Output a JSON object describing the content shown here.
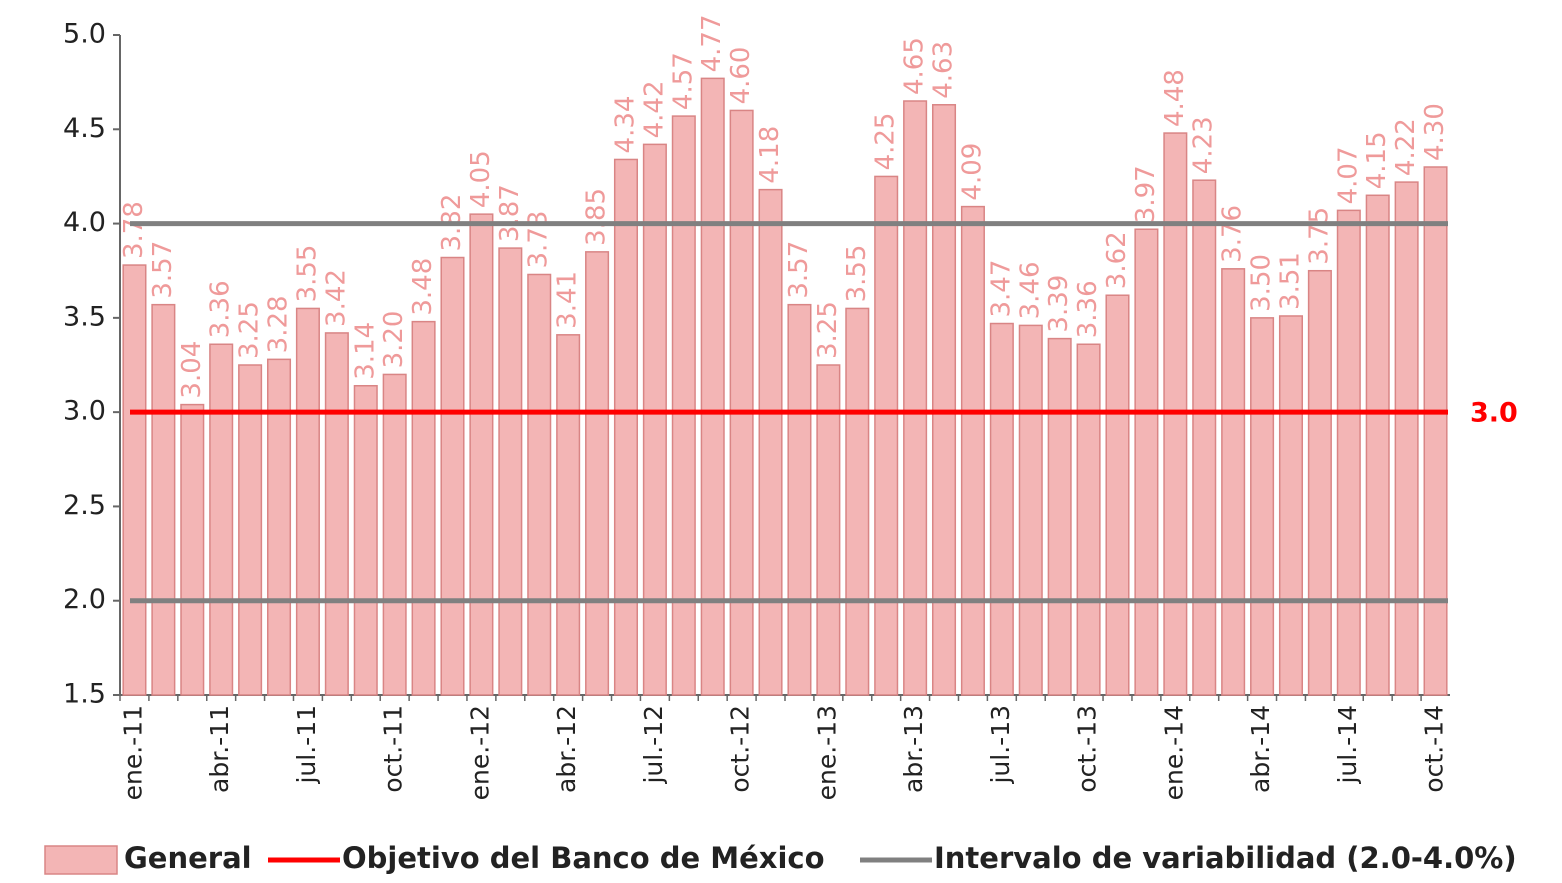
{
  "chart_data": {
    "type": "bar",
    "categories": [
      "ene.-11",
      null,
      null,
      "abr.-11",
      null,
      null,
      "jul.-11",
      null,
      null,
      "oct.-11",
      null,
      null,
      "ene.-12",
      null,
      null,
      "abr.-12",
      null,
      null,
      "jul.-12",
      null,
      null,
      "oct.-12",
      null,
      null,
      "ene.-13",
      null,
      null,
      "abr.-13",
      null,
      null,
      "jul.-13",
      null,
      null,
      "oct.-13",
      null,
      null,
      "ene.-14",
      null,
      null,
      "abr.-14",
      null,
      null,
      "jul.-14",
      null,
      null,
      "oct.-14"
    ],
    "series": [
      {
        "name": "General",
        "color": "#f3b5b5",
        "label_color": "#ef9a9a",
        "values": [
          3.78,
          3.57,
          3.04,
          3.36,
          3.25,
          3.28,
          3.55,
          3.42,
          3.14,
          3.2,
          3.48,
          3.82,
          4.05,
          3.87,
          3.73,
          3.41,
          3.85,
          4.34,
          4.42,
          4.57,
          4.77,
          4.6,
          4.18,
          3.57,
          3.25,
          3.55,
          4.25,
          4.65,
          4.63,
          4.09,
          3.47,
          3.46,
          3.39,
          3.36,
          3.62,
          3.97,
          4.48,
          4.23,
          3.76,
          3.5,
          3.51,
          3.75,
          4.07,
          4.15,
          4.22,
          4.3
        ],
        "value_labels": [
          "3.78",
          "3.57",
          "3.04",
          "3.36",
          "3.25",
          "3.28",
          "3.55",
          "3.42",
          "3.14",
          "3.20",
          "3.48",
          "3.82",
          "4.05",
          "3.87",
          "3.73",
          "3.41",
          "3.85",
          "4.34",
          "4.42",
          "4.57",
          "4.77",
          "4.60",
          "4.18",
          "3.57",
          "3.25",
          "3.55",
          "4.25",
          "4.65",
          "4.63",
          "4.09",
          "3.47",
          "3.46",
          "3.39",
          "3.36",
          "3.62",
          "3.97",
          "4.48",
          "4.23",
          "3.76",
          "3.50",
          "3.51",
          "3.75",
          "4.07",
          "4.15",
          "4.22",
          "4.30"
        ]
      }
    ],
    "hlines": [
      {
        "name": "Objetivo del Banco de México",
        "color": "#ff0000",
        "values": [
          3.0
        ],
        "value_labels": [
          "3.0"
        ]
      },
      {
        "name": "Intervalo de variabilidad (2.0-4.0%)",
        "color": "#808080",
        "values": [
          2.0,
          4.0
        ]
      }
    ],
    "ylim": [
      1.5,
      5.0
    ],
    "yticks": [
      1.5,
      {
        "value": 2.0,
        "label": "2.0"
      },
      2.5,
      {
        "value": 3.0,
        "label": "3.0"
      },
      3.5,
      {
        "value": 4.0,
        "label": "4.0"
      },
      4.5,
      {
        "value": 5.0,
        "label": "5.0"
      }
    ],
    "legend": "bottom"
  }
}
